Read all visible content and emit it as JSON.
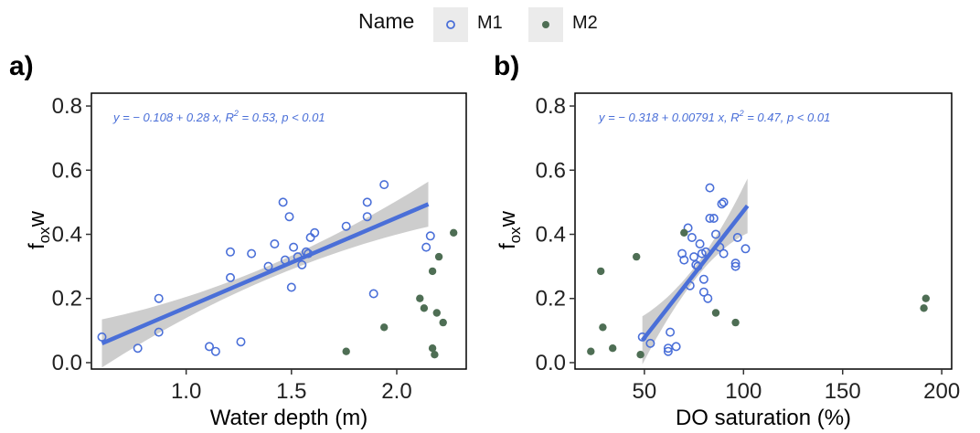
{
  "legend": {
    "title": "Name",
    "items": [
      {
        "label": "M1",
        "marker": "open-circle",
        "color": "#4a6fd8"
      },
      {
        "label": "M2",
        "marker": "filled-circle",
        "color": "#4e6e54"
      }
    ]
  },
  "colors": {
    "m1": "#4a6fd8",
    "m2": "#4e6e54",
    "fit_line": "#4a6fd8",
    "ci_band": "#c8c8c8",
    "equation": "#4a6fd8",
    "axis": "#000000",
    "tick_label": "#222222"
  },
  "chart_data": [
    {
      "type": "scatter",
      "panel_label": "a)",
      "xlabel": "Water depth (m)",
      "ylabel": "f_ox w",
      "ylabel_main": "f",
      "ylabel_sub": "ox",
      "ylabel_tail": "w",
      "xlim": [
        0.55,
        2.33
      ],
      "ylim": [
        -0.02,
        0.84
      ],
      "xticks": [
        1.0,
        1.5,
        2.0
      ],
      "xtick_labels": [
        "1.0",
        "1.5",
        "2.0"
      ],
      "yticks": [
        0.0,
        0.2,
        0.4,
        0.6,
        0.8
      ],
      "ytick_labels": [
        "0.0",
        "0.2",
        "0.4",
        "0.6",
        "0.8"
      ],
      "equation": {
        "text_a": "y = − 0.108 + 0.28 x, R",
        "sup": "2",
        "text_b": " = 0.53, p < 0.01"
      },
      "fit": {
        "intercept": -0.108,
        "slope": 0.28,
        "x_range": [
          0.6,
          2.15
        ],
        "band": [
          0.075,
          0.02,
          0.07
        ]
      },
      "series": [
        {
          "name": "M1",
          "points": [
            [
              0.6,
              0.08
            ],
            [
              0.77,
              0.045
            ],
            [
              0.87,
              0.2
            ],
            [
              0.87,
              0.095
            ],
            [
              1.11,
              0.05
            ],
            [
              1.14,
              0.035
            ],
            [
              1.21,
              0.345
            ],
            [
              1.21,
              0.265
            ],
            [
              1.26,
              0.065
            ],
            [
              1.31,
              0.34
            ],
            [
              1.39,
              0.3
            ],
            [
              1.42,
              0.37
            ],
            [
              1.46,
              0.5
            ],
            [
              1.47,
              0.32
            ],
            [
              1.49,
              0.455
            ],
            [
              1.5,
              0.235
            ],
            [
              1.51,
              0.36
            ],
            [
              1.53,
              0.33
            ],
            [
              1.55,
              0.305
            ],
            [
              1.57,
              0.345
            ],
            [
              1.58,
              0.34
            ],
            [
              1.59,
              0.39
            ],
            [
              1.61,
              0.405
            ],
            [
              1.76,
              0.425
            ],
            [
              1.86,
              0.5
            ],
            [
              1.86,
              0.455
            ],
            [
              1.89,
              0.215
            ],
            [
              1.94,
              0.555
            ],
            [
              2.14,
              0.36
            ],
            [
              2.16,
              0.395
            ]
          ]
        },
        {
          "name": "M2",
          "points": [
            [
              1.76,
              0.035
            ],
            [
              1.94,
              0.11
            ],
            [
              2.11,
              0.2
            ],
            [
              2.13,
              0.17
            ],
            [
              2.17,
              0.285
            ],
            [
              2.17,
              0.045
            ],
            [
              2.18,
              0.025
            ],
            [
              2.19,
              0.155
            ],
            [
              2.2,
              0.33
            ],
            [
              2.22,
              0.125
            ],
            [
              2.27,
              0.405
            ]
          ]
        }
      ]
    },
    {
      "type": "scatter",
      "panel_label": "b)",
      "xlabel": "DO saturation (%)",
      "ylabel": "f_ox w",
      "ylabel_main": "f",
      "ylabel_sub": "ox",
      "ylabel_tail": "w",
      "xlim": [
        15,
        205
      ],
      "ylim": [
        -0.02,
        0.84
      ],
      "xticks": [
        50,
        100,
        150,
        200
      ],
      "xtick_labels": [
        "50",
        "100",
        "150",
        "200"
      ],
      "yticks": [
        0.0,
        0.2,
        0.4,
        0.6,
        0.8
      ],
      "ytick_labels": [
        "0.0",
        "0.2",
        "0.4",
        "0.6",
        "0.8"
      ],
      "equation": {
        "text_a": "y = − 0.318 + 0.00791 x, R",
        "sup": "2",
        "text_b": " = 0.47, p < 0.01"
      },
      "fit": {
        "intercept": -0.318,
        "slope": 0.00791,
        "x_range": [
          49,
          102
        ],
        "band": [
          0.075,
          0.02,
          0.085
        ]
      },
      "series": [
        {
          "name": "M1",
          "points": [
            [
              49,
              0.08
            ],
            [
              53,
              0.06
            ],
            [
              62,
              0.035
            ],
            [
              62,
              0.045
            ],
            [
              63,
              0.095
            ],
            [
              66,
              0.05
            ],
            [
              69,
              0.34
            ],
            [
              70,
              0.32
            ],
            [
              72,
              0.42
            ],
            [
              73,
              0.24
            ],
            [
              74,
              0.39
            ],
            [
              75,
              0.33
            ],
            [
              76,
              0.305
            ],
            [
              77,
              0.3
            ],
            [
              78,
              0.37
            ],
            [
              79,
              0.34
            ],
            [
              80,
              0.22
            ],
            [
              80,
              0.26
            ],
            [
              81,
              0.345
            ],
            [
              82,
              0.2
            ],
            [
              83,
              0.545
            ],
            [
              83,
              0.45
            ],
            [
              85,
              0.45
            ],
            [
              86,
              0.4
            ],
            [
              88,
              0.36
            ],
            [
              89,
              0.495
            ],
            [
              90,
              0.5
            ],
            [
              90,
              0.34
            ],
            [
              96,
              0.31
            ],
            [
              96,
              0.3
            ],
            [
              97,
              0.39
            ],
            [
              101,
              0.355
            ]
          ]
        },
        {
          "name": "M2",
          "points": [
            [
              23,
              0.035
            ],
            [
              28,
              0.285
            ],
            [
              29,
              0.11
            ],
            [
              34,
              0.045
            ],
            [
              46,
              0.33
            ],
            [
              48,
              0.025
            ],
            [
              70,
              0.405
            ],
            [
              86,
              0.155
            ],
            [
              96,
              0.125
            ],
            [
              191,
              0.17
            ],
            [
              192,
              0.2
            ]
          ]
        }
      ]
    }
  ]
}
